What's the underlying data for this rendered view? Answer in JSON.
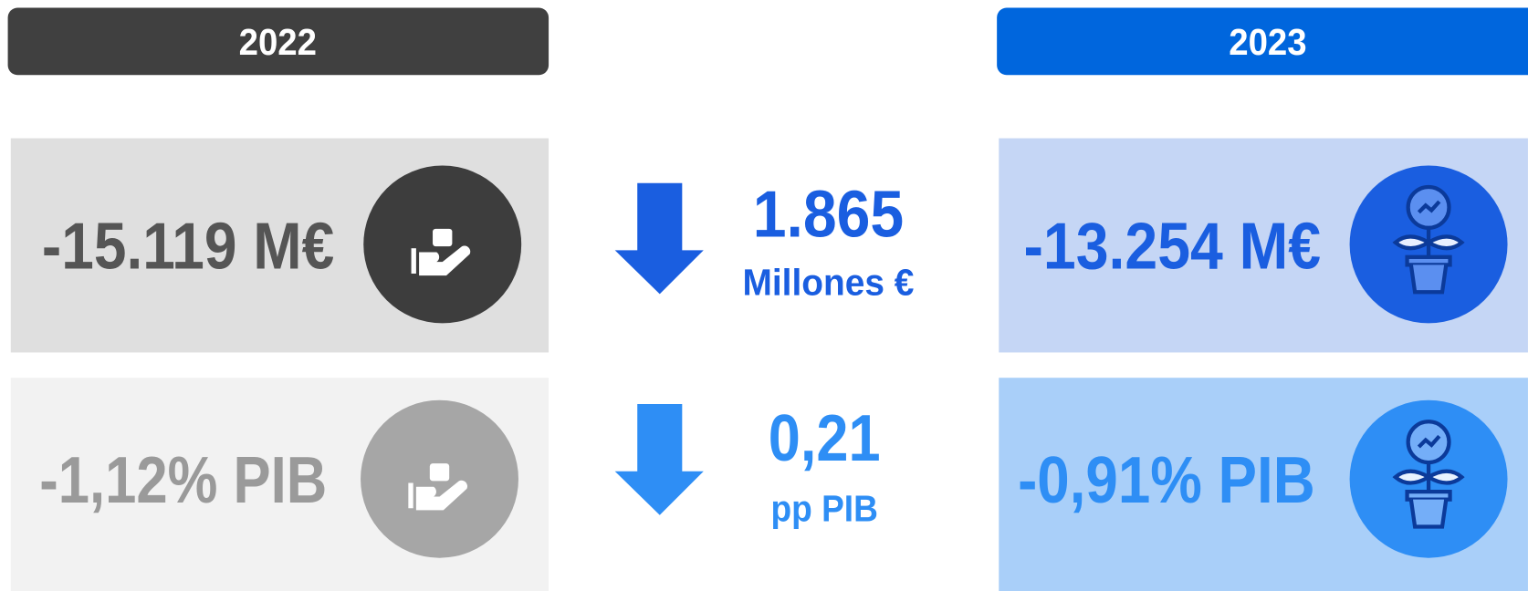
{
  "header": {
    "left": "2022",
    "right": "2023"
  },
  "left": {
    "amount": "-15.119 M€",
    "gdp": "-1,12% PIB"
  },
  "change": {
    "amount": "1.865",
    "amount_unit": "Millones €",
    "gdp": "0,21",
    "gdp_unit": "pp PIB"
  },
  "right": {
    "amount": "-13.254 M€",
    "gdp": "-0,91% PIB"
  }
}
